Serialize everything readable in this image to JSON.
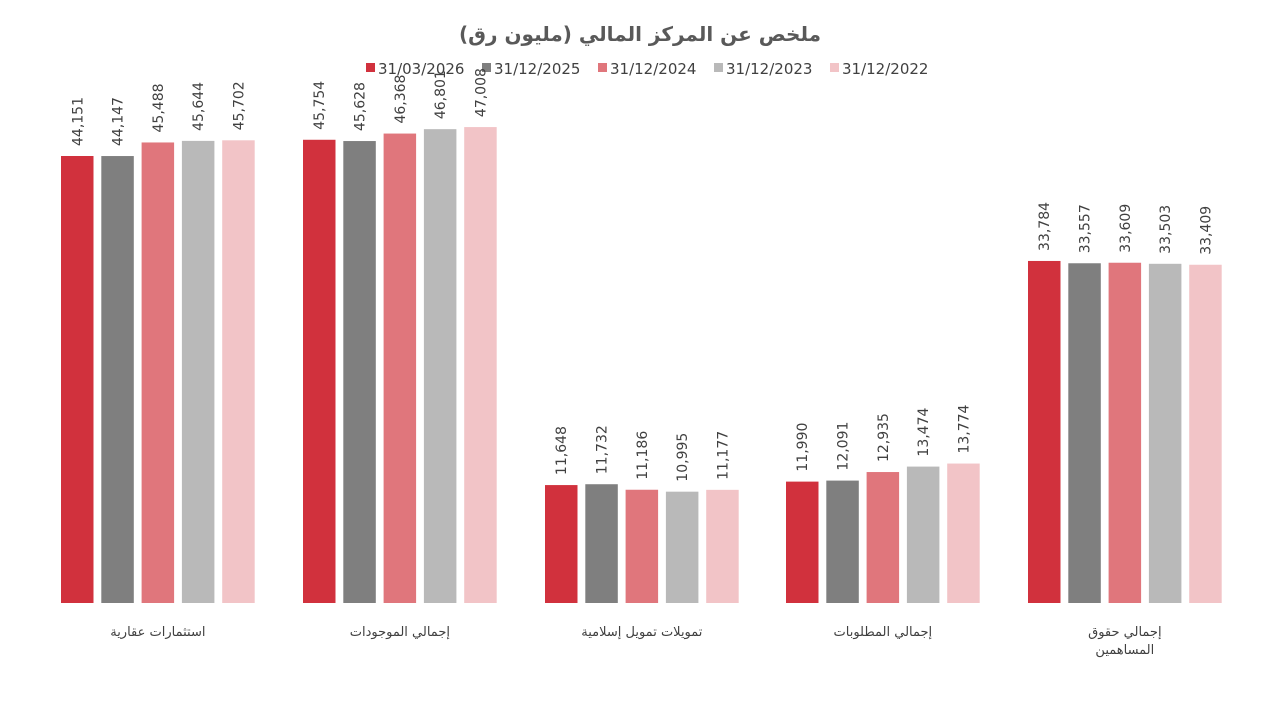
{
  "chart_data": {
    "type": "bar",
    "title": "ملخص عن المركز المالي (مليون رق)",
    "xlabel": "",
    "ylabel": "",
    "ylim": [
      0,
      50000
    ],
    "grid": false,
    "legend_position": "top",
    "categories": [
      [
        "استثمارات عقارية"
      ],
      [
        "إجمالي الموجودات"
      ],
      [
        "تمويلات تمويل إسلامية"
      ],
      [
        "إجمالي المطلوبات"
      ],
      [
        "إجمالي حقوق",
        "المساهمين"
      ]
    ],
    "series": [
      {
        "name": "31/03/2026",
        "color": "#d1313d",
        "values": [
          44151,
          45754,
          11648,
          11990,
          33784
        ],
        "labels": [
          "44,151",
          "45,754",
          "11,648",
          "11,990",
          "33,784"
        ]
      },
      {
        "name": "31/12/2025",
        "color": "#7f7f7f",
        "values": [
          44147,
          45628,
          11732,
          12091,
          33557
        ],
        "labels": [
          "44,147",
          "45,628",
          "11,732",
          "12,091",
          "33,557"
        ]
      },
      {
        "name": "31/12/2024",
        "color": "#e0767c",
        "values": [
          45488,
          46368,
          11186,
          12935,
          33609
        ],
        "labels": [
          "45,488",
          "46,368",
          "11,186",
          "12,935",
          "33,609"
        ]
      },
      {
        "name": "31/12/2023",
        "color": "#b9b9b9",
        "values": [
          45644,
          46801,
          10995,
          13474,
          33503
        ],
        "labels": [
          "45,644",
          "46,801",
          "10,995",
          "13,474",
          "33,503"
        ]
      },
      {
        "name": "31/12/2022",
        "color": "#f2c4c7",
        "values": [
          45702,
          47008,
          11177,
          13774,
          33409
        ],
        "labels": [
          "45,702",
          "47,008",
          "11,177",
          "13,774",
          "33,409"
        ]
      }
    ]
  }
}
